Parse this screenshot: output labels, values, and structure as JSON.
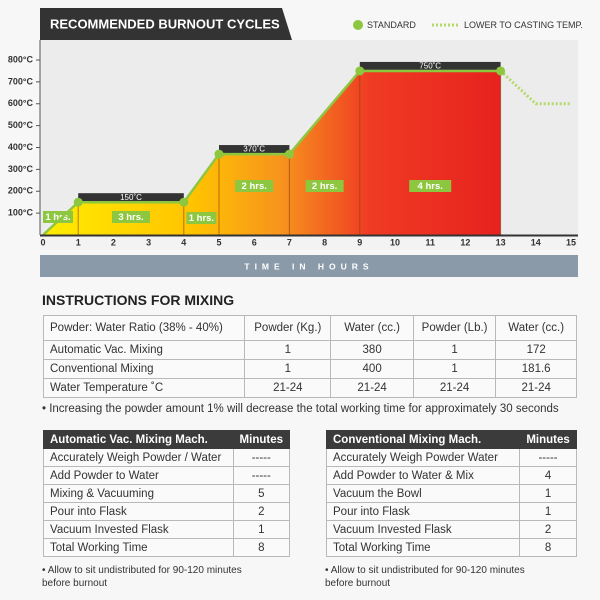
{
  "chart_data": {
    "type": "line",
    "title": "RECOMMENDED BURNOUT CYCLES",
    "xlabel": "TIME IN HOURS",
    "xlim": [
      0,
      15
    ],
    "xticks": [
      0,
      1,
      2,
      3,
      4,
      5,
      6,
      7,
      8,
      9,
      10,
      11,
      12,
      13,
      14,
      15
    ],
    "ylim": [
      0,
      800
    ],
    "yticks": [
      {
        "value": 100,
        "label": "100°C"
      },
      {
        "value": 200,
        "label": "200°C"
      },
      {
        "value": 300,
        "label": "300°C"
      },
      {
        "value": 400,
        "label": "400°C"
      },
      {
        "value": 500,
        "label": "500°C"
      },
      {
        "value": 600,
        "label": "600°C"
      },
      {
        "value": 700,
        "label": "700°C"
      },
      {
        "value": 800,
        "label": "800°C"
      }
    ],
    "series": [
      {
        "name": "STANDARD",
        "color": "#8dc63f",
        "dashed": false,
        "x": [
          0,
          1,
          4,
          5,
          7,
          9,
          13
        ],
        "values": [
          0,
          150,
          150,
          370,
          370,
          750,
          750
        ]
      },
      {
        "name": "LOWER TO CASTING TEMP.",
        "color": "#b5d96a",
        "dashed": true,
        "x": [
          13,
          14,
          15
        ],
        "values": [
          750,
          600,
          600
        ]
      }
    ],
    "annotations": {
      "durations": [
        "1 hrs.",
        "3 hrs.",
        "1 hrs.",
        "2 hrs.",
        "2 hrs.",
        "4 hrs."
      ],
      "temperatures": [
        "150˚C",
        "370˚C",
        "750˚C"
      ]
    }
  },
  "instructions": {
    "title": "INSTRUCTIONS FOR MIXING",
    "ratio_table": {
      "header": [
        "Powder: Water Ratio (38% - 40%)",
        "Powder  (Kg.)",
        "Water (cc.)",
        "Powder (Lb.)",
        "Water (cc.)"
      ],
      "rows": [
        [
          "Automatic Vac. Mixing",
          "1",
          "380",
          "1",
          "172"
        ],
        [
          "Conventional Mixing",
          "1",
          "400",
          "1",
          "181.6"
        ],
        [
          "Water Temperature ˚C",
          "21-24",
          "21-24",
          "21-24",
          "21-24"
        ]
      ]
    },
    "note": "• Increasing the powder amount 1% will decrease the total working time for approximately 30 seconds",
    "automatic_table": {
      "header": [
        "Automatic Vac. Mixing Mach.",
        "Minutes"
      ],
      "rows": [
        [
          "Accurately Weigh Powder / Water",
          "-----"
        ],
        [
          "Add Powder to Water",
          "-----"
        ],
        [
          "Mixing & Vacuuming",
          "5"
        ],
        [
          "Pour into Flask",
          "2"
        ],
        [
          "Vacuum Invested Flask",
          "1"
        ],
        [
          "Total Working Time",
          "8"
        ]
      ],
      "footnote": "• Allow to sit undistributed for 90-120 minutes before burnout"
    },
    "conventional_table": {
      "header": [
        "Conventional Mixing Mach.",
        "Minutes"
      ],
      "rows": [
        [
          "Accurately Weigh Powder Water",
          "-----"
        ],
        [
          "Add Powder to Water & Mix",
          "4"
        ],
        [
          "Vacuum the Bowl",
          "1"
        ],
        [
          "Pour into Flask",
          "1"
        ],
        [
          "Vacuum Invested Flask",
          "2"
        ],
        [
          "Total Working Time",
          "8"
        ]
      ],
      "footnote": "• Allow to sit undistributed for 90-120 minutes before burnout"
    }
  }
}
